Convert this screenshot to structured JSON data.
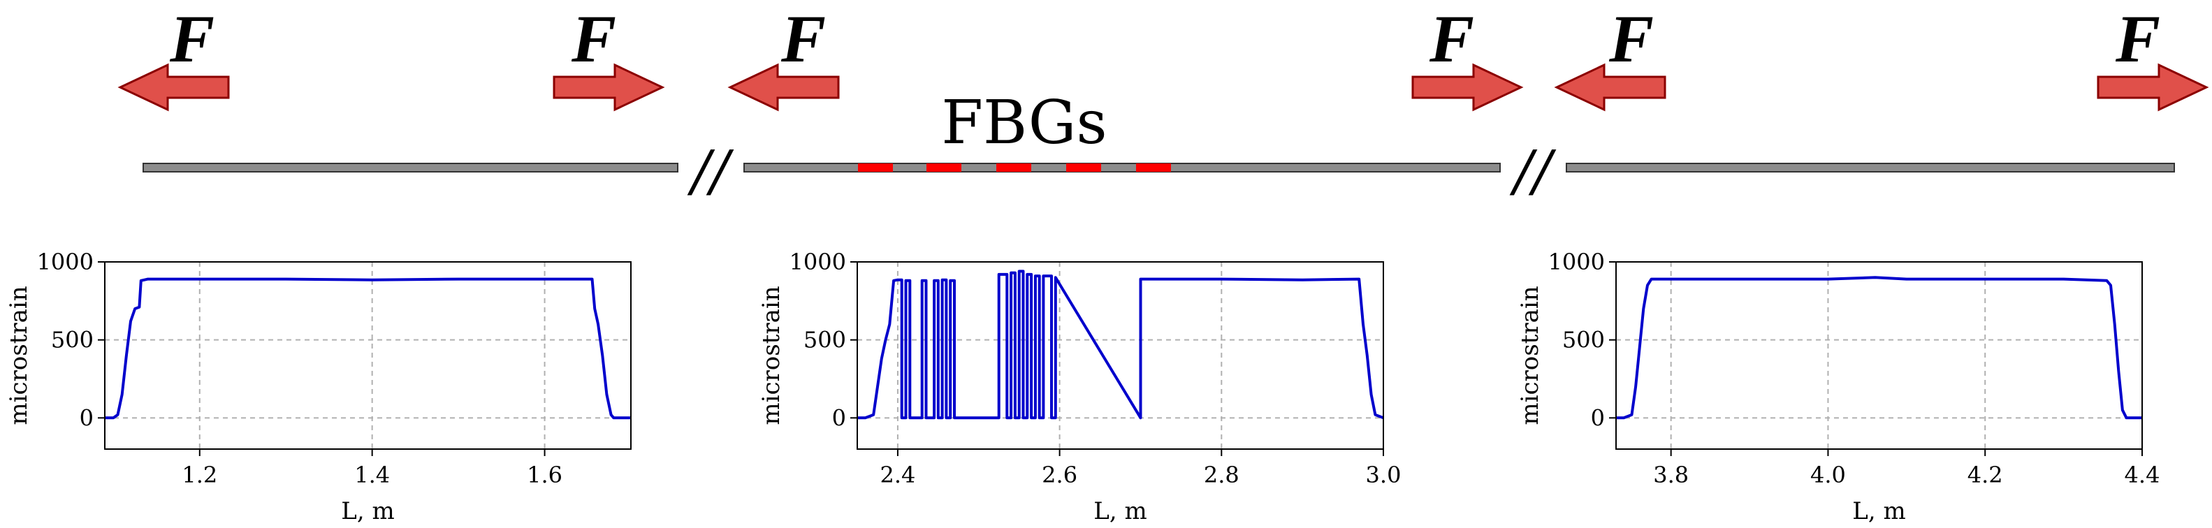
{
  "schematic": {
    "force_label": "F",
    "fbg_label": "FBGs",
    "break_mark": "//",
    "fiber_color": "#8c8c8c",
    "fbg_color": "#ff0000",
    "arrow_fill": "#e0504a",
    "arrow_stroke": "#8b0000"
  },
  "chart_data": [
    {
      "type": "line",
      "xlabel": "L, m",
      "ylabel": "microstrain",
      "xlim": [
        1.09,
        1.7
      ],
      "ylim": [
        -200,
        1000
      ],
      "xticks": [
        1.2,
        1.4,
        1.6
      ],
      "xtick_labels": [
        "1.2",
        "1.4",
        "1.6"
      ],
      "yticks": [
        0,
        500,
        1000
      ],
      "ytick_labels": [
        "0",
        "500",
        "1000"
      ],
      "grid": true,
      "line_color": "#0000cc",
      "series": [
        {
          "x": [
            1.09,
            1.1,
            1.105,
            1.11,
            1.115,
            1.12,
            1.125,
            1.13,
            1.132,
            1.14,
            1.2,
            1.3,
            1.4,
            1.5,
            1.6,
            1.655,
            1.658,
            1.662,
            1.667,
            1.672,
            1.677,
            1.68,
            1.69,
            1.7
          ],
          "y": [
            0,
            0,
            20,
            150,
            400,
            620,
            700,
            710,
            880,
            890,
            890,
            890,
            885,
            890,
            890,
            890,
            700,
            600,
            400,
            150,
            20,
            0,
            0,
            0
          ]
        }
      ]
    },
    {
      "type": "line",
      "xlabel": "L, m",
      "ylabel": "microstrain",
      "xlim": [
        2.35,
        3.0
      ],
      "ylim": [
        -200,
        1000
      ],
      "xticks": [
        2.4,
        2.6,
        2.8,
        3.0
      ],
      "xtick_labels": [
        "2.4",
        "2.6",
        "2.8",
        "3.0"
      ],
      "yticks": [
        0,
        500,
        1000
      ],
      "ytick_labels": [
        "0",
        "500",
        "1000"
      ],
      "grid": true,
      "line_color": "#0000cc",
      "series": [
        {
          "x": [
            2.35,
            2.36,
            2.37,
            2.375,
            2.38,
            2.385,
            2.39,
            2.395,
            2.4,
            2.405,
            2.405,
            2.41,
            2.41,
            2.415,
            2.415,
            2.43,
            2.43,
            2.435,
            2.435,
            2.445,
            2.445,
            2.45,
            2.45,
            2.455,
            2.455,
            2.46,
            2.46,
            2.465,
            2.465,
            2.47,
            2.47,
            2.525,
            2.525,
            2.535,
            2.535,
            2.54,
            2.54,
            2.545,
            2.545,
            2.55,
            2.55,
            2.555,
            2.555,
            2.56,
            2.56,
            2.565,
            2.565,
            2.57,
            2.57,
            2.575,
            2.575,
            2.58,
            2.58,
            2.59,
            2.59,
            2.595,
            2.595,
            2.7,
            2.7,
            2.8,
            2.9,
            2.97,
            2.975,
            2.98,
            2.985,
            2.99,
            3.0
          ],
          "y": [
            0,
            0,
            20,
            200,
            380,
            500,
            600,
            880,
            885,
            885,
            0,
            0,
            880,
            880,
            0,
            0,
            880,
            880,
            0,
            0,
            880,
            880,
            0,
            0,
            885,
            885,
            0,
            0,
            880,
            880,
            0,
            0,
            920,
            920,
            0,
            0,
            930,
            930,
            0,
            0,
            940,
            940,
            0,
            0,
            920,
            920,
            0,
            0,
            910,
            910,
            0,
            0,
            910,
            910,
            0,
            0,
            900,
            0,
            890,
            890,
            885,
            890,
            600,
            400,
            150,
            20,
            0
          ]
        }
      ]
    },
    {
      "type": "line",
      "xlabel": "L, m",
      "ylabel": "microstrain",
      "xlim": [
        3.73,
        4.4
      ],
      "ylim": [
        -200,
        1000
      ],
      "xticks": [
        3.8,
        4.0,
        4.2,
        4.4
      ],
      "xtick_labels": [
        "3.8",
        "4.0",
        "4.2",
        "4.4"
      ],
      "yticks": [
        0,
        500,
        1000
      ],
      "ytick_labels": [
        "0",
        "500",
        "1000"
      ],
      "grid": true,
      "line_color": "#0000cc",
      "series": [
        {
          "x": [
            3.73,
            3.74,
            3.75,
            3.755,
            3.76,
            3.765,
            3.77,
            3.775,
            3.78,
            3.8,
            3.9,
            4.0,
            4.06,
            4.1,
            4.2,
            4.3,
            4.355,
            4.36,
            4.365,
            4.37,
            4.375,
            4.38,
            4.39,
            4.4
          ],
          "y": [
            0,
            0,
            20,
            200,
            450,
            700,
            850,
            890,
            890,
            890,
            890,
            890,
            900,
            890,
            890,
            890,
            880,
            850,
            600,
            300,
            50,
            0,
            0,
            0
          ]
        }
      ]
    }
  ]
}
